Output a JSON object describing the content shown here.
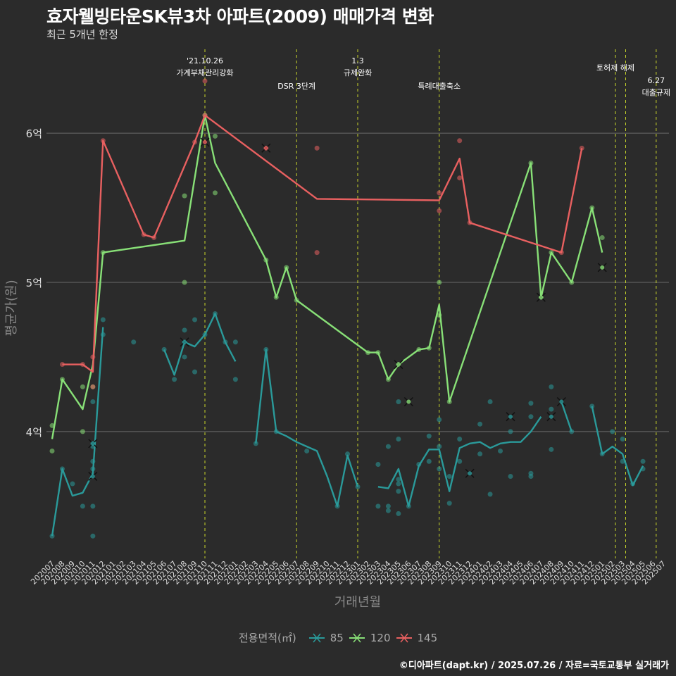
{
  "title": "효자웰빙타운SK뷰3차 아파트(2009) 매매가격 변화",
  "subtitle": "최근 5개년 한정",
  "caption": "©디아파트(dapt.kr) / 2025.07.26 / 자료=국토교통부 실거래가",
  "chart_data": {
    "type": "line",
    "xlabel": "거래년월",
    "ylabel": "평균가(원)",
    "ylim": [
      3.15,
      6.6
    ],
    "yticks": [
      {
        "v": 4,
        "label": "4억"
      },
      {
        "v": 5,
        "label": "5억"
      },
      {
        "v": 6,
        "label": "6억"
      }
    ],
    "categories": [
      "202007",
      "202008",
      "202009",
      "202010",
      "202011",
      "202012",
      "202101",
      "202102",
      "202103",
      "202104",
      "202105",
      "202106",
      "202107",
      "202108",
      "202109",
      "202110",
      "202111",
      "202112",
      "202201",
      "202202",
      "202203",
      "202204",
      "202205",
      "202206",
      "202207",
      "202208",
      "202209",
      "202210",
      "202211",
      "202212",
      "202301",
      "202302",
      "202303",
      "202304",
      "202305",
      "202306",
      "202307",
      "202308",
      "202309",
      "202310",
      "202311",
      "202312",
      "202401",
      "202402",
      "202403",
      "202404",
      "202405",
      "202406",
      "202407",
      "202408",
      "202409",
      "202410",
      "202411",
      "202412",
      "202501",
      "202502",
      "202503",
      "202504",
      "202505",
      "202506",
      "202507"
    ],
    "legend_title": "전용면적(㎡)",
    "series": [
      {
        "name": "85",
        "color": "#2a9a9a",
        "line": [
          [
            0,
            3.3
          ],
          [
            1,
            3.75
          ],
          [
            2,
            3.57
          ],
          [
            3,
            3.59
          ],
          [
            4,
            3.72
          ],
          [
            5,
            4.7
          ],
          [
            null,
            null
          ],
          [
            11,
            4.55
          ],
          [
            12,
            4.38
          ],
          [
            13,
            4.6
          ],
          [
            14,
            4.57
          ],
          [
            15,
            4.65
          ],
          [
            16,
            4.79
          ],
          [
            17,
            4.6
          ],
          [
            18,
            4.47
          ],
          [
            null,
            null
          ],
          [
            20,
            3.92
          ],
          [
            21,
            4.55
          ],
          [
            22,
            4.0
          ],
          [
            23,
            3.97
          ],
          [
            24,
            3.93
          ],
          [
            25,
            3.9
          ],
          [
            26,
            3.87
          ],
          [
            27,
            3.7
          ],
          [
            28,
            3.5
          ],
          [
            29,
            3.84
          ],
          [
            30,
            3.63
          ],
          [
            null,
            null
          ],
          [
            32,
            3.63
          ],
          [
            33,
            3.62
          ],
          [
            34,
            3.75
          ],
          [
            35,
            3.5
          ],
          [
            36,
            3.77
          ],
          [
            37,
            3.88
          ],
          [
            38,
            3.88
          ],
          [
            39,
            3.6
          ],
          [
            40,
            3.89
          ],
          [
            41,
            3.92
          ],
          [
            42,
            3.93
          ],
          [
            43,
            3.89
          ],
          [
            44,
            3.92
          ],
          [
            45,
            3.93
          ],
          [
            46,
            3.93
          ],
          [
            47,
            4.0
          ],
          [
            48,
            4.1
          ],
          [
            null,
            null
          ],
          [
            50,
            4.2
          ],
          [
            51,
            4.0
          ],
          [
            null,
            null
          ],
          [
            53,
            4.17
          ],
          [
            54,
            3.85
          ],
          [
            55,
            3.9
          ],
          [
            56,
            3.85
          ],
          [
            57,
            3.64
          ],
          [
            58,
            3.77
          ]
        ],
        "points": [
          [
            0,
            3.3
          ],
          [
            1,
            3.75
          ],
          [
            2,
            3.65
          ],
          [
            3,
            3.5
          ],
          [
            4,
            3.9
          ],
          [
            4,
            3.3
          ],
          [
            4,
            3.5
          ],
          [
            4,
            3.75
          ],
          [
            4,
            3.92
          ],
          [
            4,
            4.2
          ],
          [
            4,
            3.8
          ],
          [
            5,
            4.75
          ],
          [
            5,
            4.65
          ],
          [
            8,
            4.6
          ],
          [
            11,
            4.55
          ],
          [
            12,
            4.35
          ],
          [
            13,
            4.6
          ],
          [
            13,
            4.68
          ],
          [
            13,
            4.5
          ],
          [
            14,
            4.4
          ],
          [
            14,
            4.75
          ],
          [
            15,
            4.65
          ],
          [
            16,
            4.79
          ],
          [
            17,
            4.6
          ],
          [
            18,
            4.6
          ],
          [
            18,
            4.35
          ],
          [
            20,
            3.92
          ],
          [
            21,
            4.55
          ],
          [
            22,
            4.0
          ],
          [
            25,
            3.87
          ],
          [
            28,
            3.5
          ],
          [
            29,
            3.85
          ],
          [
            30,
            3.63
          ],
          [
            32,
            3.78
          ],
          [
            32,
            3.5
          ],
          [
            33,
            3.9
          ],
          [
            33,
            3.47
          ],
          [
            33,
            3.5
          ],
          [
            34,
            3.6
          ],
          [
            34,
            3.95
          ],
          [
            34,
            3.45
          ],
          [
            34,
            3.68
          ],
          [
            34,
            3.65
          ],
          [
            34,
            4.2
          ],
          [
            35,
            3.5
          ],
          [
            36,
            3.78
          ],
          [
            37,
            3.8
          ],
          [
            37,
            3.97
          ],
          [
            38,
            4.08
          ],
          [
            38,
            3.75
          ],
          [
            38,
            3.9
          ],
          [
            39,
            3.7
          ],
          [
            39,
            3.52
          ],
          [
            40,
            3.8
          ],
          [
            40,
            3.95
          ],
          [
            42,
            4.05
          ],
          [
            42,
            3.85
          ],
          [
            43,
            3.58
          ],
          [
            43,
            4.2
          ],
          [
            44,
            3.87
          ],
          [
            45,
            3.7
          ],
          [
            45,
            4.0
          ],
          [
            47,
            3.7
          ],
          [
            47,
            4.19
          ],
          [
            47,
            4.1
          ],
          [
            47,
            3.72
          ],
          [
            49,
            4.3
          ],
          [
            49,
            3.88
          ],
          [
            49,
            4.15
          ],
          [
            51,
            4.0
          ],
          [
            53,
            4.17
          ],
          [
            54,
            3.85
          ],
          [
            55,
            4.0
          ],
          [
            56,
            3.8
          ],
          [
            56,
            3.95
          ],
          [
            57,
            3.65
          ],
          [
            58,
            3.75
          ],
          [
            58,
            3.8
          ]
        ],
        "crosses": [
          [
            4,
            3.92
          ],
          [
            4,
            3.7
          ],
          [
            13,
            4.6
          ],
          [
            41,
            3.72
          ],
          [
            45,
            4.1
          ],
          [
            49,
            4.1
          ],
          [
            50,
            4.2
          ]
        ]
      },
      {
        "name": "120",
        "color": "#88e077",
        "line": [
          [
            0,
            3.95
          ],
          [
            1,
            4.35
          ],
          [
            3,
            4.15
          ],
          [
            4,
            4.45
          ],
          [
            5,
            5.2
          ],
          [
            13,
            5.28
          ],
          [
            15,
            6.12
          ],
          [
            16,
            5.8
          ],
          [
            21,
            5.15
          ],
          [
            22,
            4.9
          ],
          [
            23,
            5.1
          ],
          [
            24,
            4.88
          ],
          [
            31,
            4.53
          ],
          [
            32,
            4.53
          ],
          [
            33,
            4.35
          ],
          [
            34,
            4.45
          ],
          [
            36,
            4.55
          ],
          [
            37,
            4.56
          ],
          [
            38,
            4.85
          ],
          [
            39,
            4.2
          ],
          [
            47,
            5.8
          ],
          [
            48,
            4.9
          ],
          [
            49,
            5.2
          ],
          [
            51,
            5.0
          ],
          [
            53,
            5.5
          ],
          [
            54,
            5.2
          ]
        ],
        "points": [
          [
            0,
            3.87
          ],
          [
            0,
            4.04
          ],
          [
            1,
            4.35
          ],
          [
            3,
            4.3
          ],
          [
            3,
            4.0
          ],
          [
            4,
            4.3
          ],
          [
            5,
            5.2
          ],
          [
            13,
            5.0
          ],
          [
            13,
            5.58
          ],
          [
            15,
            6.12
          ],
          [
            16,
            5.6
          ],
          [
            16,
            5.98
          ],
          [
            21,
            5.15
          ],
          [
            22,
            4.9
          ],
          [
            23,
            5.1
          ],
          [
            24,
            4.88
          ],
          [
            31,
            4.53
          ],
          [
            32,
            4.53
          ],
          [
            33,
            4.35
          ],
          [
            34,
            4.45
          ],
          [
            36,
            4.55
          ],
          [
            37,
            4.56
          ],
          [
            38,
            4.78
          ],
          [
            38,
            5.0
          ],
          [
            39,
            4.2
          ],
          [
            47,
            5.8
          ],
          [
            48,
            4.9
          ],
          [
            49,
            5.2
          ],
          [
            51,
            5.0
          ],
          [
            53,
            5.5
          ],
          [
            54,
            5.3
          ]
        ],
        "crosses": [
          [
            34,
            4.45
          ],
          [
            35,
            4.2
          ],
          [
            48,
            4.9
          ],
          [
            54,
            5.1
          ]
        ]
      },
      {
        "name": "145",
        "color": "#e86060",
        "line": [
          [
            1,
            4.45
          ],
          [
            3,
            4.45
          ],
          [
            4,
            4.4
          ],
          [
            5,
            5.95
          ],
          [
            9,
            5.32
          ],
          [
            10,
            5.3
          ],
          [
            14,
            5.94
          ],
          [
            15,
            6.12
          ],
          [
            26,
            5.56
          ],
          [
            38,
            5.55
          ],
          [
            40,
            5.83
          ],
          [
            41,
            5.4
          ],
          [
            50,
            5.2
          ],
          [
            52,
            5.9
          ]
        ],
        "points": [
          [
            1,
            4.45
          ],
          [
            3,
            4.45
          ],
          [
            4,
            4.5
          ],
          [
            4,
            4.3
          ],
          [
            5,
            5.95
          ],
          [
            9,
            5.32
          ],
          [
            10,
            5.3
          ],
          [
            14,
            5.94
          ],
          [
            15,
            6.35
          ],
          [
            15,
            6.12
          ],
          [
            21,
            5.9
          ],
          [
            26,
            5.9
          ],
          [
            26,
            5.2
          ],
          [
            38,
            5.6
          ],
          [
            38,
            5.48
          ],
          [
            40,
            5.95
          ],
          [
            40,
            5.7
          ],
          [
            41,
            5.4
          ],
          [
            50,
            5.2
          ],
          [
            52,
            5.9
          ]
        ],
        "crosses": [
          [
            15,
            5.94
          ],
          [
            21,
            5.9
          ]
        ]
      }
    ],
    "events": [
      {
        "x": 15,
        "lines": [
          "'21.10.26",
          "가계부채관리강화"
        ],
        "row": 0
      },
      {
        "x": 24,
        "lines": [
          "DSR 3단계"
        ],
        "row": 2
      },
      {
        "x": 30,
        "lines": [
          "1.3",
          "규제완화"
        ],
        "row": 0
      },
      {
        "x": 38,
        "lines": [
          "특례대출축소"
        ],
        "row": 2
      },
      {
        "x": 55.3,
        "lines": [
          "토허제 해제"
        ],
        "row": 1
      },
      {
        "x": 56.3,
        "lines": [],
        "row": 1
      },
      {
        "x": 59.3,
        "lines": [
          "6.27",
          "대출규제"
        ],
        "row": 3
      }
    ]
  }
}
